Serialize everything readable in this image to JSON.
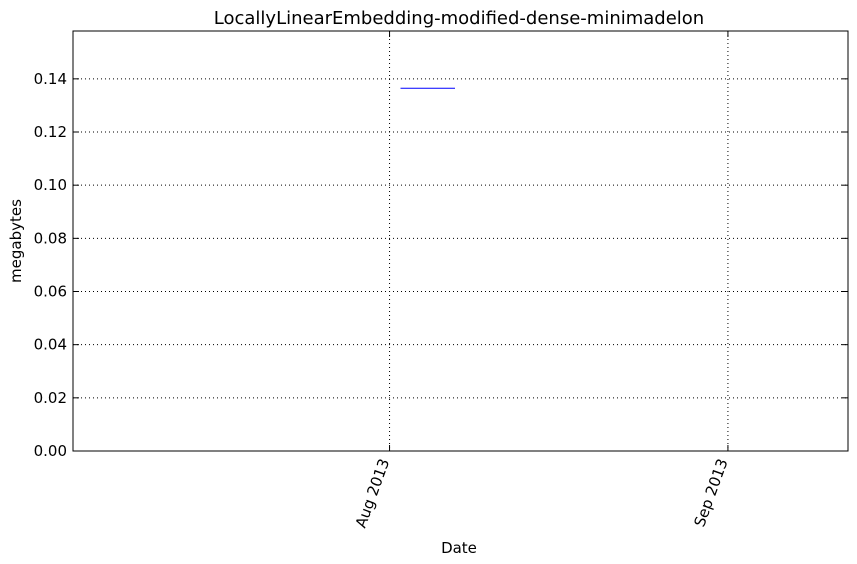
{
  "chart_data": {
    "type": "line",
    "title": "LocallyLinearEmbedding-modified-dense-minimadelon",
    "xlabel": "Date",
    "ylabel": "megabytes",
    "x_type": "date",
    "xlim": [
      "2013-07-03",
      "2013-09-12"
    ],
    "ylim": [
      0,
      0.158
    ],
    "y_ticks": [
      0.0,
      0.02,
      0.04,
      0.06,
      0.08,
      0.1,
      0.12,
      0.14
    ],
    "y_tick_labels": [
      "0.00",
      "0.02",
      "0.04",
      "0.06",
      "0.08",
      "0.10",
      "0.12",
      "0.14"
    ],
    "x_ticks": [
      "2013-08-01",
      "2013-09-01"
    ],
    "x_tick_labels": [
      "Aug 2013",
      "Sep 2013"
    ],
    "grid": true,
    "series": [
      {
        "color": "#0000ff",
        "points": [
          {
            "x": "2013-08-02",
            "y": 0.1365
          },
          {
            "x": "2013-08-07",
            "y": 0.1365
          }
        ]
      }
    ]
  }
}
